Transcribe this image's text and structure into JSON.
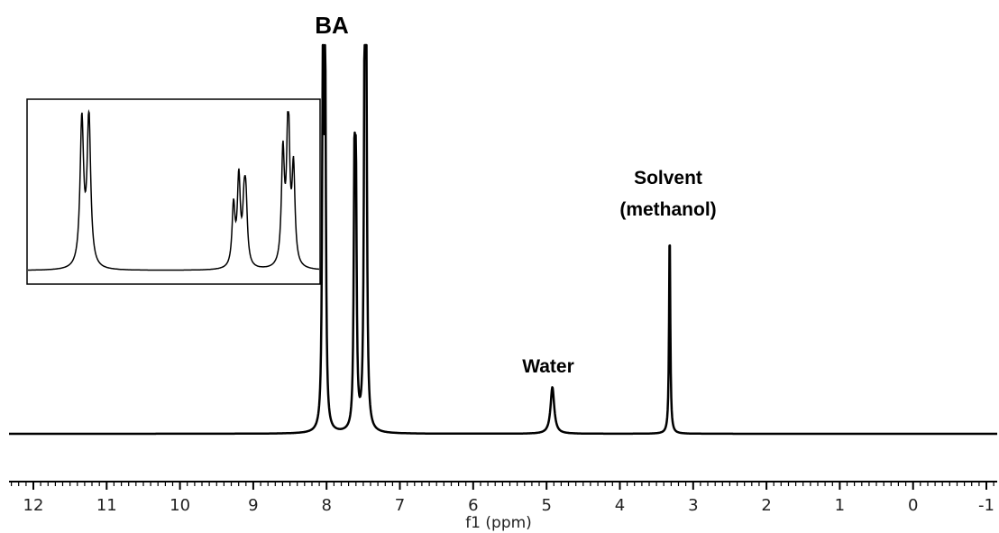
{
  "chart_data": {
    "type": "line",
    "xlabel": "f1 (ppm)",
    "x_reversed": true,
    "xlim": [
      12.3,
      -1.2
    ],
    "xticks": [
      12,
      11,
      10,
      9,
      8,
      7,
      6,
      5,
      4,
      3,
      2,
      1,
      0,
      -1
    ],
    "ylim": [
      0,
      1.0
    ],
    "grid": false,
    "annotations": [
      {
        "text": "BA",
        "x": 7.8
      },
      {
        "text": "Solvent",
        "x": 3.3
      },
      {
        "text": "(methanol)",
        "x": 3.3
      },
      {
        "text": "Water",
        "x": 4.9
      }
    ],
    "peaks": [
      {
        "x": 8.05,
        "height": 1.0,
        "width": 0.012
      },
      {
        "x": 8.02,
        "height": 0.96,
        "width": 0.012
      },
      {
        "x": 7.62,
        "height": 0.62,
        "width": 0.012
      },
      {
        "x": 7.6,
        "height": 0.58,
        "width": 0.012
      },
      {
        "x": 7.48,
        "height": 1.0,
        "width": 0.012
      },
      {
        "x": 7.46,
        "height": 0.95,
        "width": 0.012
      },
      {
        "x": 4.92,
        "height": 0.12,
        "width": 0.03
      },
      {
        "x": 3.32,
        "height": 0.53,
        "width": 0.01
      }
    ],
    "inset": {
      "description_hidden": true,
      "peaks": [
        {
          "x": 8.06,
          "height": 0.92,
          "width": 0.006
        },
        {
          "x": 8.04,
          "height": 0.95,
          "width": 0.006
        },
        {
          "x": 7.63,
          "height": 0.38,
          "width": 0.005
        },
        {
          "x": 7.615,
          "height": 0.55,
          "width": 0.005
        },
        {
          "x": 7.6,
          "height": 0.32,
          "width": 0.005
        },
        {
          "x": 7.595,
          "height": 0.36,
          "width": 0.005
        },
        {
          "x": 7.49,
          "height": 0.7,
          "width": 0.005
        },
        {
          "x": 7.475,
          "height": 1.0,
          "width": 0.005
        },
        {
          "x": 7.46,
          "height": 0.6,
          "width": 0.005
        }
      ],
      "xlim": [
        8.2,
        7.4
      ]
    }
  }
}
